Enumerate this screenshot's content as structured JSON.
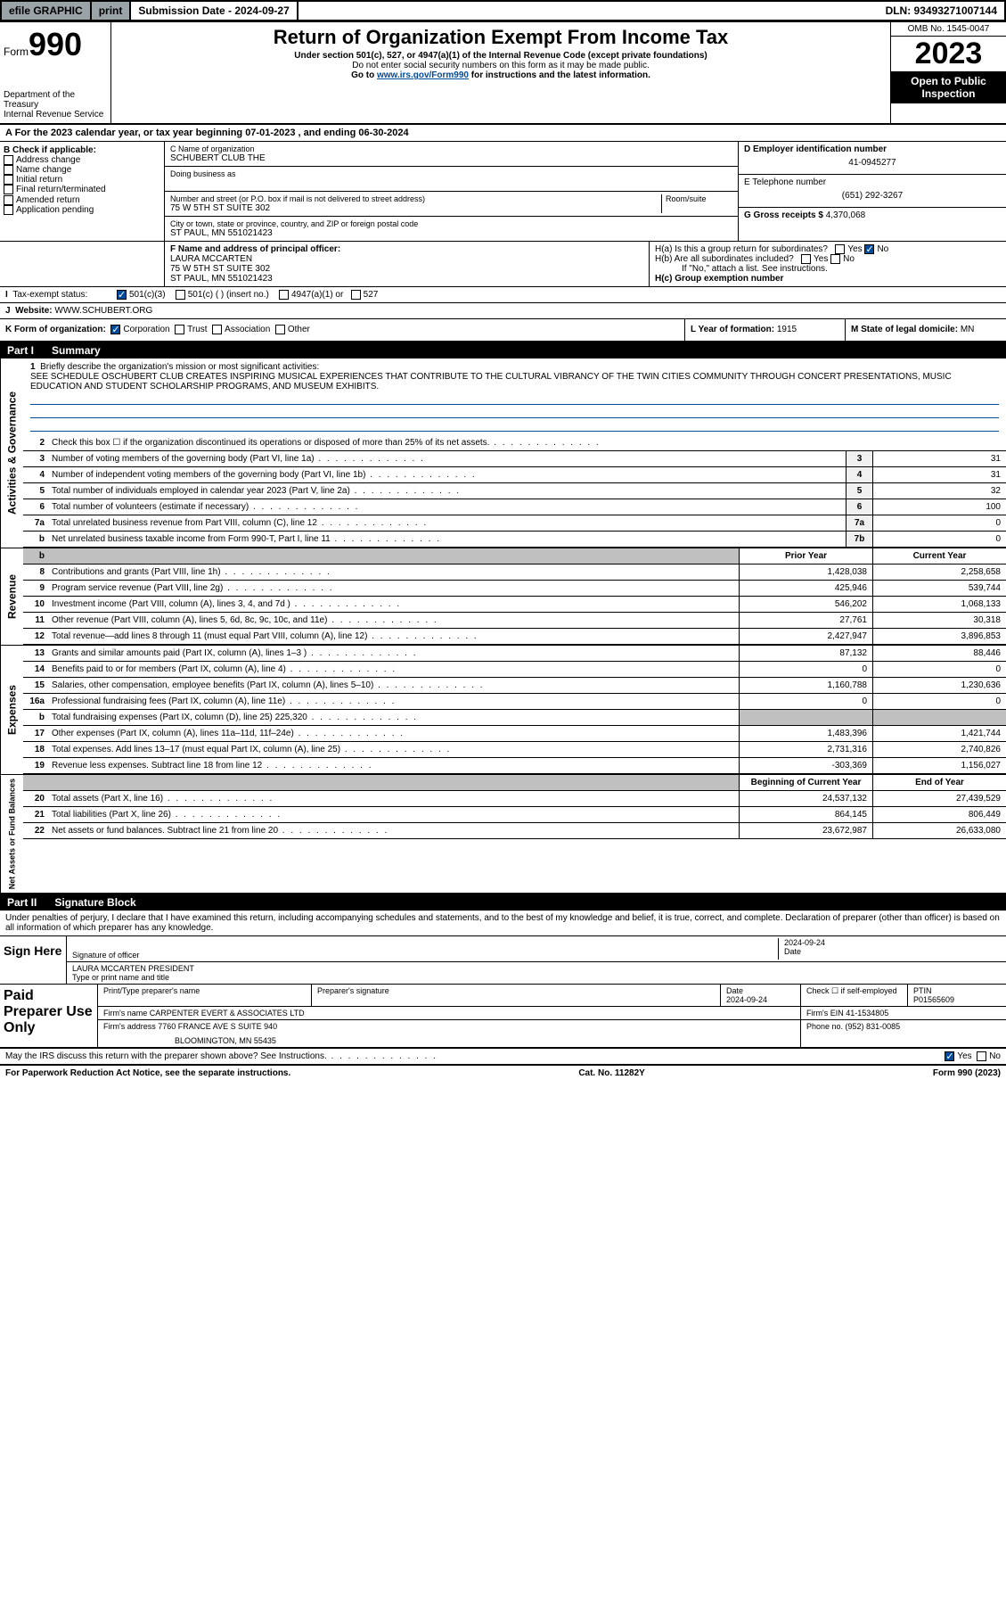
{
  "topbar": {
    "efile": "efile GRAPHIC",
    "print": "print",
    "sub_label": "Submission Date - 2024-09-27",
    "dln": "DLN: 93493271007144"
  },
  "header": {
    "form_word": "Form",
    "form_num": "990",
    "dept": "Department of the Treasury",
    "irs": "Internal Revenue Service",
    "title": "Return of Organization Exempt From Income Tax",
    "sub1": "Under section 501(c), 527, or 4947(a)(1) of the Internal Revenue Code (except private foundations)",
    "sub2": "Do not enter social security numbers on this form as it may be made public.",
    "sub3_pre": "Go to ",
    "sub3_link": "www.irs.gov/Form990",
    "sub3_post": " for instructions and the latest information.",
    "omb": "OMB No. 1545-0047",
    "year": "2023",
    "inspect": "Open to Public Inspection"
  },
  "period": {
    "a": "A For the 2023 calendar year, or tax year beginning 07-01-2023   , and ending 06-30-2024"
  },
  "boxB": {
    "title": "B Check if applicable:",
    "opts": [
      "Address change",
      "Name change",
      "Initial return",
      "Final return/terminated",
      "Amended return",
      "Application pending"
    ]
  },
  "boxC": {
    "name_label": "C Name of organization",
    "name": "SCHUBERT CLUB THE",
    "dba_label": "Doing business as",
    "addr_label": "Number and street (or P.O. box if mail is not delivered to street address)",
    "room_label": "Room/suite",
    "addr": "75 W 5TH ST SUITE 302",
    "city_label": "City or town, state or province, country, and ZIP or foreign postal code",
    "city": "ST PAUL, MN  551021423"
  },
  "boxD": {
    "label": "D Employer identification number",
    "val": "41-0945277"
  },
  "boxE": {
    "label": "E Telephone number",
    "val": "(651) 292-3267"
  },
  "boxG": {
    "label": "G Gross receipts $ ",
    "val": "4,370,068"
  },
  "boxF": {
    "label": "F Name and address of principal officer:",
    "name": "LAURA MCCARTEN",
    "addr1": "75 W 5TH ST SUITE 302",
    "addr2": "ST PAUL, MN  551021423"
  },
  "boxH": {
    "ha": "H(a)  Is this a group return for subordinates?",
    "hb": "H(b)  Are all subordinates included?",
    "hb_note": "If \"No,\" attach a list. See instructions.",
    "hc": "H(c)  Group exemption number ",
    "yes": "Yes",
    "no": "No"
  },
  "boxI": {
    "label": "Tax-exempt status:",
    "opts": {
      "a": "501(c)(3)",
      "b": "501(c) (  ) (insert no.)",
      "c": "4947(a)(1) or",
      "d": "527"
    }
  },
  "boxJ": {
    "label": "Website: ",
    "val": "WWW.SCHUBERT.ORG"
  },
  "boxK": {
    "label": "K Form of organization:",
    "opts": [
      "Corporation",
      "Trust",
      "Association",
      "Other"
    ]
  },
  "boxL": {
    "label": "L Year of formation: ",
    "val": "1915"
  },
  "boxM": {
    "label": "M State of legal domicile: ",
    "val": "MN"
  },
  "part1": {
    "label": "Part I",
    "title": "Summary"
  },
  "mission": {
    "num": "1",
    "label": "Briefly describe the organization's mission or most significant activities:",
    "text": "SEE SCHEDULE OSCHUBERT CLUB CREATES INSPIRING MUSICAL EXPERIENCES THAT CONTRIBUTE TO THE CULTURAL VIBRANCY OF THE TWIN CITIES COMMUNITY THROUGH CONCERT PRESENTATIONS, MUSIC EDUCATION AND STUDENT SCHOLARSHIP PROGRAMS, AND MUSEUM EXHIBITS."
  },
  "gov_rows": [
    {
      "num": "2",
      "desc": "Check this box  ☐  if the organization discontinued its operations or disposed of more than 25% of its net assets.",
      "box": "",
      "val": ""
    },
    {
      "num": "3",
      "desc": "Number of voting members of the governing body (Part VI, line 1a)",
      "box": "3",
      "val": "31"
    },
    {
      "num": "4",
      "desc": "Number of independent voting members of the governing body (Part VI, line 1b)",
      "box": "4",
      "val": "31"
    },
    {
      "num": "5",
      "desc": "Total number of individuals employed in calendar year 2023 (Part V, line 2a)",
      "box": "5",
      "val": "32"
    },
    {
      "num": "6",
      "desc": "Total number of volunteers (estimate if necessary)",
      "box": "6",
      "val": "100"
    },
    {
      "num": "7a",
      "desc": "Total unrelated business revenue from Part VIII, column (C), line 12",
      "box": "7a",
      "val": "0"
    },
    {
      "num": "b",
      "desc": "Net unrelated business taxable income from Form 990-T, Part I, line 11",
      "box": "7b",
      "val": "0"
    }
  ],
  "col_hdrs": {
    "prior": "Prior Year",
    "curr": "Current Year",
    "begin": "Beginning of Current Year",
    "end": "End of Year"
  },
  "revenue": [
    {
      "num": "8",
      "desc": "Contributions and grants (Part VIII, line 1h)",
      "prior": "1,428,038",
      "curr": "2,258,658"
    },
    {
      "num": "9",
      "desc": "Program service revenue (Part VIII, line 2g)",
      "prior": "425,946",
      "curr": "539,744"
    },
    {
      "num": "10",
      "desc": "Investment income (Part VIII, column (A), lines 3, 4, and 7d )",
      "prior": "546,202",
      "curr": "1,068,133"
    },
    {
      "num": "11",
      "desc": "Other revenue (Part VIII, column (A), lines 5, 6d, 8c, 9c, 10c, and 11e)",
      "prior": "27,761",
      "curr": "30,318"
    },
    {
      "num": "12",
      "desc": "Total revenue—add lines 8 through 11 (must equal Part VIII, column (A), line 12)",
      "prior": "2,427,947",
      "curr": "3,896,853"
    }
  ],
  "expenses": [
    {
      "num": "13",
      "desc": "Grants and similar amounts paid (Part IX, column (A), lines 1–3 )",
      "prior": "87,132",
      "curr": "88,446"
    },
    {
      "num": "14",
      "desc": "Benefits paid to or for members (Part IX, column (A), line 4)",
      "prior": "0",
      "curr": "0"
    },
    {
      "num": "15",
      "desc": "Salaries, other compensation, employee benefits (Part IX, column (A), lines 5–10)",
      "prior": "1,160,788",
      "curr": "1,230,636"
    },
    {
      "num": "16a",
      "desc": "Professional fundraising fees (Part IX, column (A), line 11e)",
      "prior": "0",
      "curr": "0"
    },
    {
      "num": "b",
      "desc": "Total fundraising expenses (Part IX, column (D), line 25) 225,320",
      "prior": "",
      "curr": ""
    },
    {
      "num": "17",
      "desc": "Other expenses (Part IX, column (A), lines 11a–11d, 11f–24e)",
      "prior": "1,483,396",
      "curr": "1,421,744"
    },
    {
      "num": "18",
      "desc": "Total expenses. Add lines 13–17 (must equal Part IX, column (A), line 25)",
      "prior": "2,731,316",
      "curr": "2,740,826"
    },
    {
      "num": "19",
      "desc": "Revenue less expenses. Subtract line 18 from line 12",
      "prior": "-303,369",
      "curr": "1,156,027"
    }
  ],
  "netassets": [
    {
      "num": "20",
      "desc": "Total assets (Part X, line 16)",
      "prior": "24,537,132",
      "curr": "27,439,529"
    },
    {
      "num": "21",
      "desc": "Total liabilities (Part X, line 26)",
      "prior": "864,145",
      "curr": "806,449"
    },
    {
      "num": "22",
      "desc": "Net assets or fund balances. Subtract line 21 from line 20",
      "prior": "23,672,987",
      "curr": "26,633,080"
    }
  ],
  "vert": {
    "gov": "Activities & Governance",
    "rev": "Revenue",
    "exp": "Expenses",
    "net": "Net Assets or Fund Balances"
  },
  "part2": {
    "label": "Part II",
    "title": "Signature Block"
  },
  "perjury": "Under penalties of perjury, I declare that I have examined this return, including accompanying schedules and statements, and to the best of my knowledge and belief, it is true, correct, and complete. Declaration of preparer (other than officer) is based on all information of which preparer has any knowledge.",
  "sign": {
    "here": "Sign Here",
    "sig_label": "Signature of officer",
    "name": "LAURA MCCARTEN PRESIDENT",
    "name_label": "Type or print name and title",
    "date_label": "Date",
    "date": "2024-09-24"
  },
  "paid": {
    "title": "Paid Preparer Use Only",
    "hdr": {
      "name": "Print/Type preparer's name",
      "sig": "Preparer's signature",
      "date": "Date",
      "chk": "Check ☐ if self-employed",
      "ptin": "PTIN"
    },
    "date": "2024-09-24",
    "ptin": "P01565609",
    "firm_label": "Firm's name   ",
    "firm": "CARPENTER EVERT & ASSOCIATES LTD",
    "ein_label": "Firm's EIN  ",
    "ein": "41-1534805",
    "addr_label": "Firm's address ",
    "addr": "7760 FRANCE AVE S SUITE 940",
    "addr2": "BLOOMINGTON, MN  55435",
    "phone_label": "Phone no. ",
    "phone": "(952) 831-0085"
  },
  "discuss": {
    "text": "May the IRS discuss this return with the preparer shown above? See Instructions.",
    "yes": "Yes",
    "no": "No"
  },
  "footer": {
    "pra": "For Paperwork Reduction Act Notice, see the separate instructions.",
    "cat": "Cat. No. 11282Y",
    "form": "Form 990 (2023)"
  }
}
